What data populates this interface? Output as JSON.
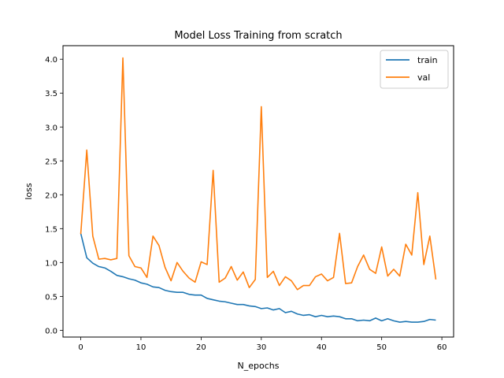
{
  "chart_data": {
    "type": "line",
    "title": "Model Loss Training from scratch",
    "xlabel": "N_epochs",
    "ylabel": "loss",
    "xlim": [
      -2.95,
      61.95
    ],
    "ylim": [
      -0.1,
      4.2
    ],
    "xticks": [
      0,
      10,
      20,
      30,
      40,
      50,
      60
    ],
    "yticks": [
      "0.0",
      "0.5",
      "1.0",
      "1.5",
      "2.0",
      "2.5",
      "3.0",
      "3.5",
      "4.0"
    ],
    "grid": false,
    "legend_position": "upper right",
    "x": [
      0,
      1,
      2,
      3,
      4,
      5,
      6,
      7,
      8,
      9,
      10,
      11,
      12,
      13,
      14,
      15,
      16,
      17,
      18,
      19,
      20,
      21,
      22,
      23,
      24,
      25,
      26,
      27,
      28,
      29,
      30,
      31,
      32,
      33,
      34,
      35,
      36,
      37,
      38,
      39,
      40,
      41,
      42,
      43,
      44,
      45,
      46,
      47,
      48,
      49,
      50,
      51,
      52,
      53,
      54,
      55,
      56,
      57,
      58,
      59
    ],
    "series": [
      {
        "name": "train",
        "color": "#1f77b4",
        "values": [
          1.43,
          1.07,
          0.99,
          0.94,
          0.92,
          0.87,
          0.81,
          0.79,
          0.76,
          0.74,
          0.7,
          0.68,
          0.64,
          0.63,
          0.59,
          0.57,
          0.56,
          0.56,
          0.53,
          0.52,
          0.52,
          0.47,
          0.45,
          0.43,
          0.42,
          0.4,
          0.38,
          0.38,
          0.36,
          0.35,
          0.32,
          0.33,
          0.3,
          0.32,
          0.26,
          0.28,
          0.24,
          0.22,
          0.23,
          0.2,
          0.22,
          0.2,
          0.21,
          0.2,
          0.17,
          0.17,
          0.14,
          0.15,
          0.14,
          0.18,
          0.14,
          0.17,
          0.14,
          0.12,
          0.13,
          0.12,
          0.12,
          0.13,
          0.16,
          0.15
        ]
      },
      {
        "name": "val",
        "color": "#ff7f0e",
        "values": [
          1.42,
          2.66,
          1.39,
          1.05,
          1.06,
          1.04,
          1.06,
          4.02,
          1.1,
          0.94,
          0.92,
          0.78,
          1.39,
          1.25,
          0.93,
          0.73,
          1.0,
          0.87,
          0.77,
          0.71,
          1.01,
          0.97,
          2.36,
          0.71,
          0.77,
          0.94,
          0.74,
          0.86,
          0.63,
          0.75,
          3.3,
          0.78,
          0.87,
          0.66,
          0.79,
          0.73,
          0.6,
          0.66,
          0.66,
          0.79,
          0.83,
          0.73,
          0.78,
          1.43,
          0.69,
          0.7,
          0.94,
          1.11,
          0.9,
          0.84,
          1.23,
          0.8,
          0.9,
          0.8,
          1.27,
          1.11,
          2.03,
          0.97,
          1.39,
          0.75
        ]
      }
    ]
  }
}
